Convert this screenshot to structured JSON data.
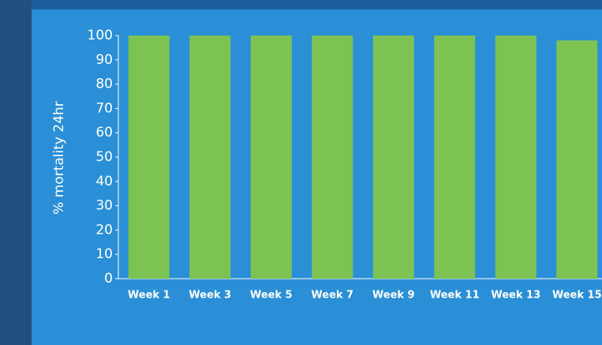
{
  "chart_data": {
    "type": "bar",
    "y_label": "% mortality 24hr",
    "categories": [
      "Week 1",
      "Week 3",
      "Week 5",
      "Week 7",
      "Week 9",
      "Week 11",
      "Week 13",
      "Week 15"
    ],
    "values": [
      100,
      100,
      100,
      100,
      100,
      100,
      100,
      98
    ],
    "color": "#7cc353",
    "ylim": [
      0,
      100
    ],
    "yticks": [
      0,
      10,
      20,
      30,
      40,
      50,
      60,
      70,
      80,
      90,
      100
    ],
    "grid": false
  }
}
